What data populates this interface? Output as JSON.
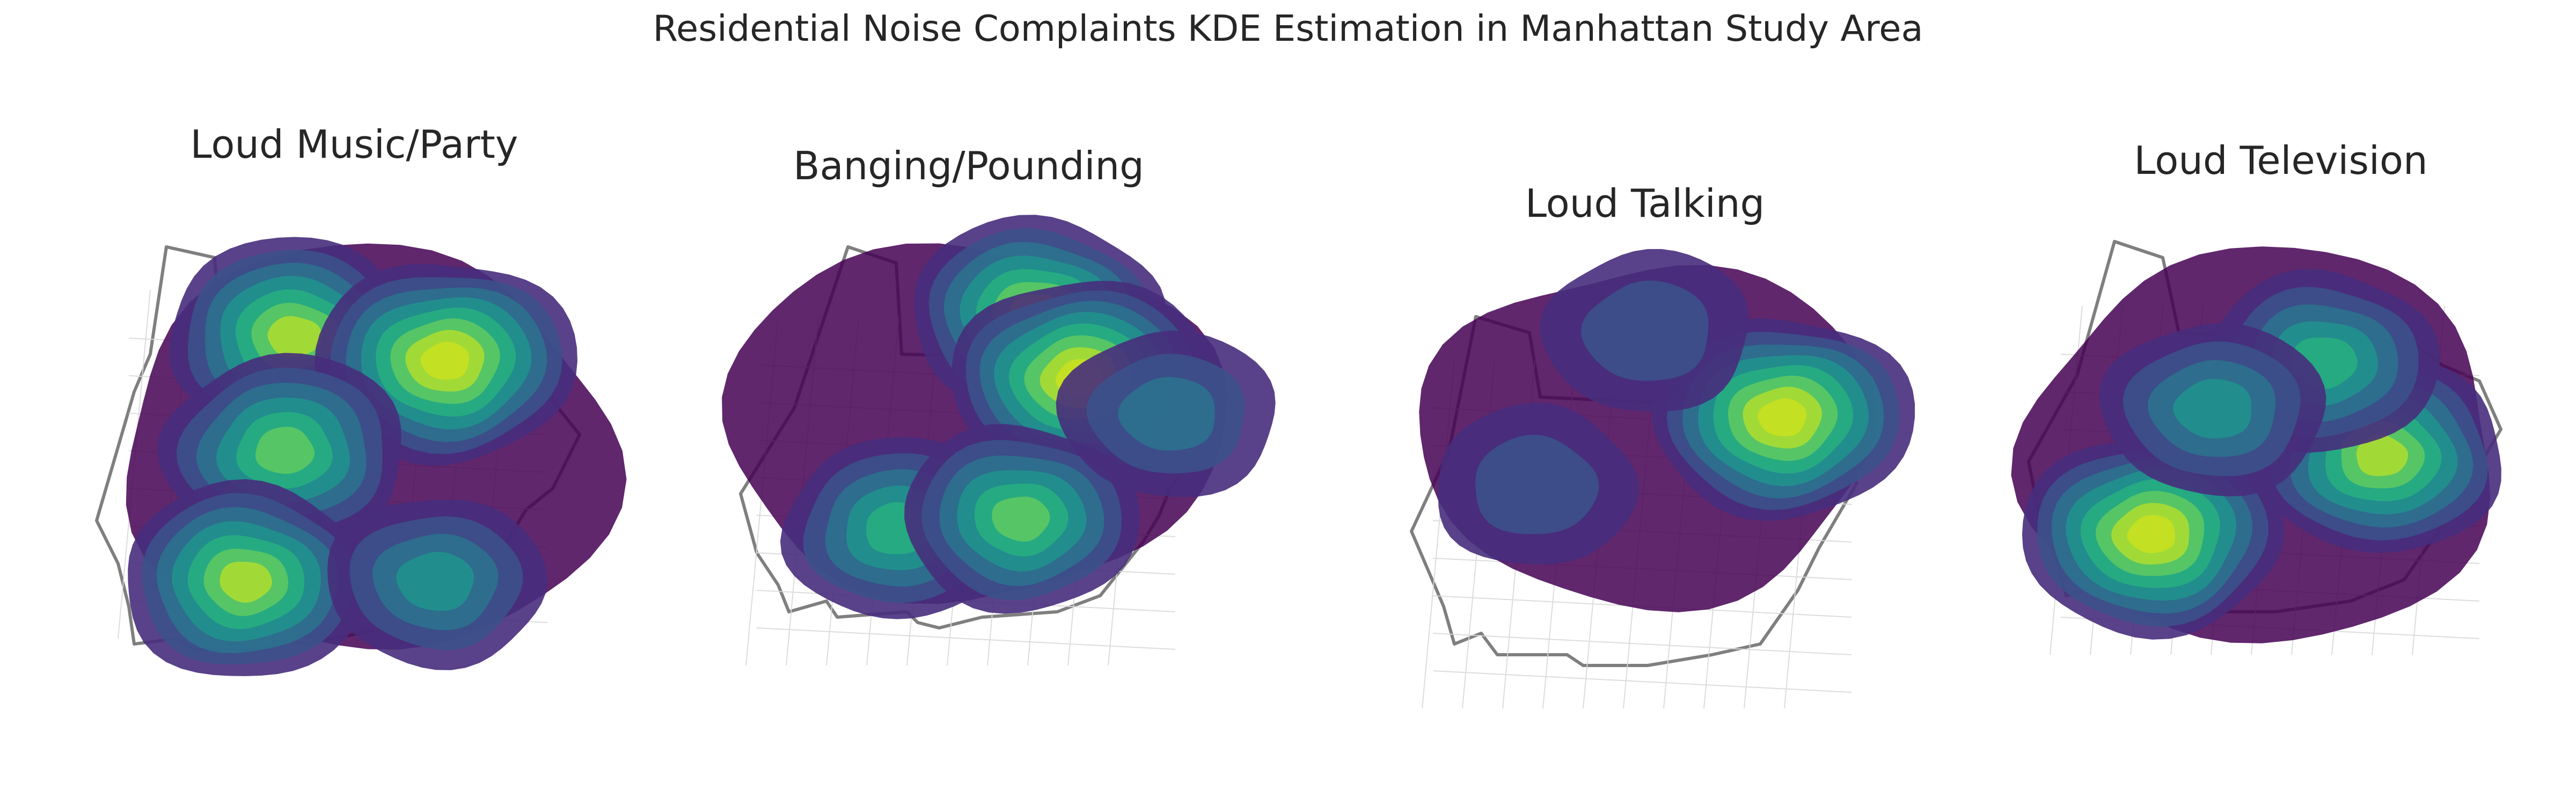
{
  "figure": {
    "title": "Residential Noise Complaints KDE Estimation in Manhattan Study Area"
  },
  "chart_data": [
    {
      "type": "heatmap",
      "subtype": "kde-contour-map",
      "title": "Loud Music/Party",
      "colormap": "viridis",
      "axes_visible": false,
      "hotspots": [
        {
          "x": 0.35,
          "y": 0.78,
          "weight": 0.9
        },
        {
          "x": 0.66,
          "y": 0.72,
          "weight": 1.0
        },
        {
          "x": 0.33,
          "y": 0.5,
          "weight": 0.8
        },
        {
          "x": 0.25,
          "y": 0.18,
          "weight": 0.85
        },
        {
          "x": 0.64,
          "y": 0.18,
          "weight": 0.45
        }
      ]
    },
    {
      "type": "heatmap",
      "subtype": "kde-contour-map",
      "title": "Banging/Pounding",
      "colormap": "viridis",
      "axes_visible": false,
      "hotspots": [
        {
          "x": 0.63,
          "y": 0.8,
          "weight": 0.85
        },
        {
          "x": 0.72,
          "y": 0.62,
          "weight": 0.95
        },
        {
          "x": 0.35,
          "y": 0.2,
          "weight": 0.6
        },
        {
          "x": 0.6,
          "y": 0.23,
          "weight": 0.7
        },
        {
          "x": 0.9,
          "y": 0.52,
          "weight": 0.4
        }
      ]
    },
    {
      "type": "heatmap",
      "subtype": "kde-contour-map",
      "title": "Loud Talking",
      "colormap": "viridis",
      "axes_visible": false,
      "hotspots": [
        {
          "x": 0.8,
          "y": 0.55,
          "weight": 1.0
        },
        {
          "x": 0.5,
          "y": 0.8,
          "weight": 0.3
        },
        {
          "x": 0.25,
          "y": 0.35,
          "weight": 0.25
        }
      ]
    },
    {
      "type": "heatmap",
      "subtype": "kde-contour-map",
      "title": "Loud Television",
      "colormap": "viridis",
      "axes_visible": false,
      "hotspots": [
        {
          "x": 0.27,
          "y": 0.28,
          "weight": 1.0
        },
        {
          "x": 0.75,
          "y": 0.48,
          "weight": 0.85
        },
        {
          "x": 0.63,
          "y": 0.72,
          "weight": 0.6
        },
        {
          "x": 0.4,
          "y": 0.6,
          "weight": 0.5
        }
      ]
    }
  ]
}
